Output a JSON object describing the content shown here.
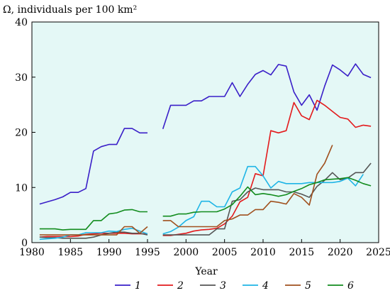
{
  "chart_data": {
    "type": "line",
    "ylabel": "Ω, individuals per 100 km²",
    "xlabel": "Year",
    "xlim": [
      1980,
      2025
    ],
    "ylim": [
      0,
      40
    ],
    "x_ticks": [
      1980,
      1985,
      1990,
      1995,
      2000,
      2005,
      2010,
      2015,
      2020,
      2025
    ],
    "y_ticks": [
      0,
      10,
      20,
      30,
      40
    ],
    "grid": false,
    "legend": {
      "placement": "bottom"
    },
    "plot_background": "#e4f8f6",
    "series": [
      {
        "name": "1",
        "color": "#3a1fc8",
        "segments": [
          [
            [
              1981,
              7.0
            ],
            [
              1982,
              7.4
            ],
            [
              1983,
              7.8
            ],
            [
              1984,
              8.3
            ],
            [
              1985,
              9.1
            ],
            [
              1986,
              9.1
            ],
            [
              1987,
              9.8
            ],
            [
              1988,
              16.6
            ],
            [
              1989,
              17.4
            ],
            [
              1990,
              17.8
            ],
            [
              1991,
              17.8
            ],
            [
              1992,
              20.7
            ],
            [
              1993,
              20.7
            ],
            [
              1994,
              19.9
            ],
            [
              1995,
              19.9
            ]
          ],
          [
            [
              1997,
              20.6
            ],
            [
              1998,
              24.9
            ],
            [
              1999,
              24.9
            ],
            [
              2000,
              24.9
            ],
            [
              2001,
              25.7
            ],
            [
              2002,
              25.7
            ],
            [
              2003,
              26.5
            ],
            [
              2004,
              26.5
            ],
            [
              2005,
              26.5
            ],
            [
              2006,
              29.0
            ],
            [
              2007,
              26.5
            ],
            [
              2008,
              28.7
            ],
            [
              2009,
              30.5
            ],
            [
              2010,
              31.2
            ],
            [
              2011,
              30.4
            ],
            [
              2012,
              32.3
            ],
            [
              2013,
              32.0
            ],
            [
              2014,
              27.3
            ],
            [
              2015,
              24.9
            ],
            [
              2016,
              26.8
            ],
            [
              2017,
              24.0
            ],
            [
              2018,
              28.4
            ],
            [
              2019,
              32.2
            ],
            [
              2020,
              31.3
            ],
            [
              2021,
              30.2
            ],
            [
              2022,
              32.4
            ],
            [
              2023,
              30.5
            ],
            [
              2024,
              29.9
            ]
          ]
        ]
      },
      {
        "name": "2",
        "color": "#e31a1c",
        "segments": [
          [
            [
              1981,
              1.0
            ],
            [
              1982,
              1.1
            ],
            [
              1983,
              1.1
            ],
            [
              1984,
              1.1
            ],
            [
              1985,
              1.1
            ],
            [
              1986,
              1.2
            ],
            [
              1987,
              1.5
            ],
            [
              1988,
              1.6
            ],
            [
              1989,
              1.7
            ],
            [
              1990,
              1.7
            ],
            [
              1991,
              1.7
            ],
            [
              1992,
              1.7
            ],
            [
              1993,
              1.6
            ],
            [
              1994,
              1.6
            ],
            [
              1995,
              1.6
            ]
          ],
          [
            [
              1997,
              1.3
            ],
            [
              1998,
              1.3
            ],
            [
              1999,
              1.5
            ],
            [
              2000,
              1.7
            ],
            [
              2001,
              2.1
            ],
            [
              2002,
              2.3
            ],
            [
              2003,
              2.4
            ],
            [
              2004,
              2.6
            ],
            [
              2005,
              3.4
            ],
            [
              2006,
              4.8
            ],
            [
              2007,
              7.4
            ],
            [
              2008,
              8.2
            ],
            [
              2009,
              12.5
            ],
            [
              2010,
              12.1
            ],
            [
              2011,
              20.3
            ],
            [
              2012,
              19.9
            ],
            [
              2013,
              20.3
            ],
            [
              2014,
              25.4
            ],
            [
              2015,
              23.0
            ],
            [
              2016,
              22.3
            ],
            [
              2017,
              25.8
            ],
            [
              2018,
              24.9
            ],
            [
              2019,
              23.8
            ],
            [
              2020,
              22.7
            ],
            [
              2021,
              22.4
            ],
            [
              2022,
              20.9
            ],
            [
              2023,
              21.3
            ],
            [
              2024,
              21.1
            ]
          ]
        ]
      },
      {
        "name": "3",
        "color": "#555555",
        "segments": [
          [
            [
              1981,
              1.0
            ],
            [
              1982,
              0.9
            ],
            [
              1983,
              0.9
            ],
            [
              1984,
              0.8
            ],
            [
              1985,
              0.8
            ],
            [
              1986,
              0.8
            ],
            [
              1987,
              0.8
            ],
            [
              1988,
              1.0
            ],
            [
              1989,
              1.4
            ],
            [
              1990,
              1.7
            ],
            [
              1991,
              1.9
            ],
            [
              1992,
              1.9
            ],
            [
              1993,
              1.7
            ],
            [
              1994,
              1.7
            ],
            [
              1995,
              1.4
            ]
          ],
          [
            [
              1997,
              1.4
            ],
            [
              1998,
              1.4
            ],
            [
              1999,
              1.4
            ],
            [
              2000,
              1.4
            ],
            [
              2001,
              1.4
            ],
            [
              2002,
              1.4
            ],
            [
              2003,
              1.4
            ],
            [
              2004,
              2.5
            ],
            [
              2005,
              2.5
            ],
            [
              2006,
              7.5
            ],
            [
              2007,
              7.8
            ],
            [
              2008,
              9.2
            ],
            [
              2009,
              9.9
            ],
            [
              2010,
              9.6
            ],
            [
              2011,
              9.6
            ],
            [
              2012,
              9.6
            ],
            [
              2013,
              9.2
            ],
            [
              2014,
              9.2
            ],
            [
              2015,
              8.8
            ],
            [
              2016,
              8.2
            ],
            [
              2017,
              10.2
            ],
            [
              2018,
              11.3
            ],
            [
              2019,
              12.7
            ],
            [
              2020,
              11.4
            ],
            [
              2021,
              11.7
            ],
            [
              2022,
              12.7
            ],
            [
              2023,
              12.7
            ],
            [
              2024,
              14.4
            ]
          ]
        ]
      },
      {
        "name": "4",
        "color": "#1fb5e6",
        "segments": [
          [
            [
              1981,
              0.6
            ],
            [
              1982,
              0.7
            ],
            [
              1983,
              0.8
            ],
            [
              1984,
              1.0
            ],
            [
              1985,
              1.4
            ],
            [
              1986,
              1.4
            ],
            [
              1987,
              1.8
            ],
            [
              1988,
              1.8
            ],
            [
              1989,
              1.8
            ],
            [
              1990,
              2.1
            ],
            [
              1991,
              2.0
            ],
            [
              1992,
              2.4
            ],
            [
              1993,
              2.6
            ],
            [
              1994,
              2.1
            ],
            [
              1995,
              1.6
            ]
          ],
          [
            [
              1997,
              1.6
            ],
            [
              1998,
              2.0
            ],
            [
              1999,
              2.8
            ],
            [
              2000,
              4.0
            ],
            [
              2001,
              4.7
            ],
            [
              2002,
              7.5
            ],
            [
              2003,
              7.5
            ],
            [
              2004,
              6.5
            ],
            [
              2005,
              6.5
            ],
            [
              2006,
              9.2
            ],
            [
              2007,
              9.9
            ],
            [
              2008,
              13.8
            ],
            [
              2009,
              13.8
            ],
            [
              2010,
              12.1
            ],
            [
              2011,
              9.9
            ],
            [
              2012,
              11.1
            ],
            [
              2013,
              10.7
            ],
            [
              2014,
              10.7
            ],
            [
              2015,
              10.7
            ],
            [
              2016,
              10.9
            ],
            [
              2017,
              10.9
            ],
            [
              2018,
              10.9
            ],
            [
              2019,
              10.9
            ],
            [
              2020,
              11.1
            ],
            [
              2021,
              11.7
            ],
            [
              2022,
              10.3
            ],
            [
              2023,
              12.4
            ]
          ]
        ]
      },
      {
        "name": "5",
        "color": "#a0501e",
        "segments": [
          [
            [
              1981,
              1.4
            ],
            [
              1982,
              1.4
            ],
            [
              1983,
              1.4
            ],
            [
              1984,
              1.4
            ],
            [
              1985,
              1.4
            ],
            [
              1986,
              1.4
            ],
            [
              1987,
              1.4
            ],
            [
              1988,
              1.4
            ],
            [
              1989,
              1.4
            ],
            [
              1990,
              1.4
            ],
            [
              1991,
              1.4
            ],
            [
              1992,
              2.9
            ],
            [
              1993,
              2.9
            ],
            [
              1994,
              1.7
            ],
            [
              1995,
              2.9
            ]
          ],
          [
            [
              1997,
              4.0
            ],
            [
              1998,
              4.0
            ],
            [
              1999,
              2.9
            ],
            [
              2000,
              2.9
            ],
            [
              2001,
              2.9
            ],
            [
              2002,
              2.9
            ],
            [
              2003,
              2.9
            ],
            [
              2004,
              2.9
            ],
            [
              2005,
              4.0
            ],
            [
              2006,
              4.3
            ],
            [
              2007,
              5.0
            ],
            [
              2008,
              5.0
            ],
            [
              2009,
              6.0
            ],
            [
              2010,
              6.0
            ],
            [
              2011,
              7.5
            ],
            [
              2012,
              7.3
            ],
            [
              2013,
              7.0
            ],
            [
              2014,
              8.9
            ],
            [
              2015,
              8.2
            ],
            [
              2016,
              6.8
            ],
            [
              2017,
              12.4
            ],
            [
              2018,
              14.4
            ],
            [
              2019,
              17.7
            ]
          ]
        ]
      },
      {
        "name": "6",
        "color": "#128c1e",
        "segments": [
          [
            [
              1981,
              2.5
            ],
            [
              1982,
              2.5
            ],
            [
              1983,
              2.5
            ],
            [
              1984,
              2.3
            ],
            [
              1985,
              2.4
            ],
            [
              1986,
              2.4
            ],
            [
              1987,
              2.4
            ],
            [
              1988,
              4.0
            ],
            [
              1989,
              4.0
            ],
            [
              1990,
              5.2
            ],
            [
              1991,
              5.4
            ],
            [
              1992,
              5.9
            ],
            [
              1993,
              6.0
            ],
            [
              1994,
              5.6
            ],
            [
              1995,
              5.6
            ]
          ],
          [
            [
              1997,
              4.8
            ],
            [
              1998,
              4.8
            ],
            [
              1999,
              5.2
            ],
            [
              2000,
              5.2
            ],
            [
              2001,
              5.5
            ],
            [
              2002,
              5.6
            ],
            [
              2003,
              5.6
            ],
            [
              2004,
              5.6
            ],
            [
              2005,
              6.1
            ],
            [
              2006,
              6.9
            ],
            [
              2007,
              8.4
            ],
            [
              2008,
              10.1
            ],
            [
              2009,
              8.7
            ],
            [
              2010,
              8.9
            ],
            [
              2011,
              8.7
            ],
            [
              2012,
              8.4
            ],
            [
              2013,
              8.7
            ],
            [
              2014,
              9.3
            ],
            [
              2015,
              9.8
            ],
            [
              2016,
              10.5
            ],
            [
              2017,
              10.9
            ],
            [
              2018,
              11.4
            ],
            [
              2019,
              11.5
            ],
            [
              2020,
              11.6
            ],
            [
              2021,
              11.8
            ],
            [
              2022,
              11.3
            ],
            [
              2023,
              10.7
            ],
            [
              2024,
              10.3
            ]
          ]
        ]
      }
    ]
  }
}
